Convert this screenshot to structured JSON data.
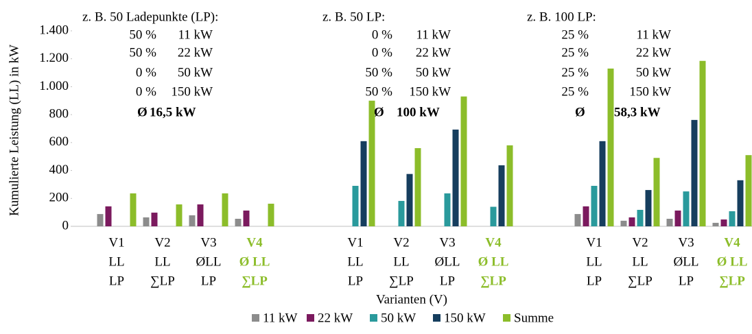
{
  "chart_data": {
    "type": "bar",
    "y_label": "Kumulierte  Leistung (LL) in kW",
    "x_label": "Varianten (V)",
    "categories": [
      [
        "V1",
        "LL",
        "LP"
      ],
      [
        "V2",
        "LL",
        "∑LP"
      ],
      [
        "V3",
        "ØLL",
        "LP"
      ],
      [
        "V4",
        "Ø LL",
        "∑LP"
      ],
      [
        "V1",
        "LL",
        "LP"
      ],
      [
        "V2",
        "LL",
        "∑LP"
      ],
      [
        "V3",
        "ØLL",
        "LP"
      ],
      [
        "V4",
        "Ø LL",
        "∑LP"
      ],
      [
        "V1",
        "LL",
        "LP"
      ],
      [
        "V2",
        "LL",
        "∑LP"
      ],
      [
        "V3",
        "ØLL",
        "LP"
      ],
      [
        "V4",
        "Ø LL",
        "∑LP"
      ]
    ],
    "series": [
      {
        "name": "11 kW",
        "color": "#8c8c8c",
        "values": [
          88,
          64,
          79,
          54,
          0,
          0,
          0,
          0,
          88,
          40,
          54,
          25
        ]
      },
      {
        "name": "22 kW",
        "color": "#7b1a5e",
        "values": [
          143,
          98,
          157,
          113,
          0,
          0,
          0,
          0,
          143,
          64,
          113,
          49
        ]
      },
      {
        "name": "50 kW",
        "color": "#2a9a9c",
        "values": [
          0,
          0,
          0,
          0,
          290,
          182,
          236,
          140,
          290,
          118,
          250,
          108
        ]
      },
      {
        "name": "150 kW",
        "color": "#163e5e",
        "values": [
          0,
          0,
          0,
          0,
          610,
          375,
          693,
          437,
          610,
          260,
          762,
          330
        ]
      },
      {
        "name": "Summe",
        "color": "#8cbd2a",
        "values": [
          236,
          157,
          236,
          162,
          900,
          560,
          930,
          580,
          1130,
          490,
          1185,
          510
        ]
      }
    ],
    "ylim": [
      0,
      1400
    ],
    "yticks": [
      0,
      200,
      400,
      600,
      800,
      {
        "value": 1000,
        "label": "1.000"
      },
      {
        "value": 1200,
        "label": "1.200"
      },
      {
        "value": 1400,
        "label": "1.400"
      }
    ],
    "annotations": [
      {
        "header": "z. B. 50 Ladepunkte  (LP):",
        "rows": [
          [
            "50 %",
            "11 kW"
          ],
          [
            "50 %",
            "22 kW"
          ],
          [
            "0 %",
            "50 kW"
          ],
          [
            "0 %",
            "150 kW"
          ]
        ],
        "average": [
          "Ø",
          "16,5 kW"
        ]
      },
      {
        "header": "z. B. 50 LP:",
        "rows": [
          [
            "0 %",
            "11 kW"
          ],
          [
            "0 %",
            "22 kW"
          ],
          [
            "50 %",
            "50 kW"
          ],
          [
            "50 %",
            "150 kW"
          ]
        ],
        "average": [
          "Ø",
          "100 kW"
        ]
      },
      {
        "header": "z. B. 100 LP:",
        "rows": [
          [
            "25 %",
            "11 kW"
          ],
          [
            "25 %",
            "22 kW"
          ],
          [
            "25 %",
            "50 kW"
          ],
          [
            "25 %",
            "150 kW"
          ]
        ],
        "average": [
          "Ø",
          "58,3 kW"
        ]
      }
    ]
  }
}
